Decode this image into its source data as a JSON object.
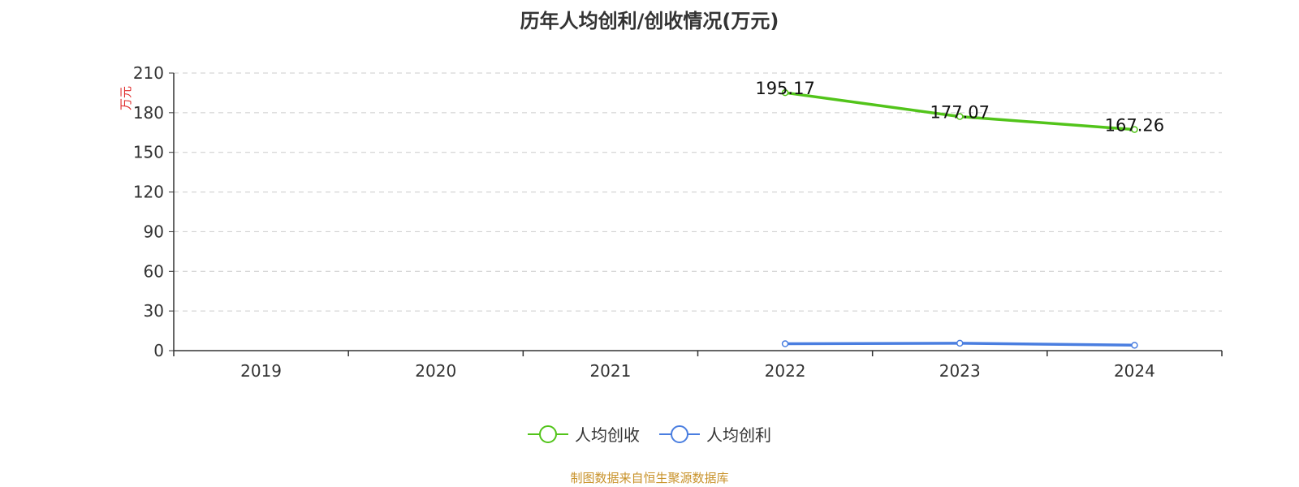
{
  "chart_data": {
    "type": "line",
    "title": "历年人均创利/创收情况(万元)",
    "ylabel": "万元",
    "categories": [
      "2019",
      "2020",
      "2021",
      "2022",
      "2023",
      "2024"
    ],
    "ylim": [
      0,
      210
    ],
    "yticks": [
      0,
      30,
      60,
      90,
      120,
      150,
      180,
      210
    ],
    "grid": true,
    "legend_position": "bottom",
    "series": [
      {
        "name": "人均创收",
        "color": "#52c41a",
        "values": [
          null,
          null,
          null,
          195.17,
          177.07,
          167.26
        ],
        "labels": [
          "",
          "",
          "",
          "195.17",
          "177.07",
          "167.26"
        ]
      },
      {
        "name": "人均创利",
        "color": "#4a7ee0",
        "values": [
          null,
          null,
          null,
          5.2,
          5.6,
          4.1
        ],
        "labels": [
          "",
          "",
          "",
          "",
          "",
          ""
        ]
      }
    ]
  },
  "source_text": "制图数据来自恒生聚源数据库",
  "colors": {
    "ylabel": "#e03030",
    "source": "#c8922a",
    "axis": "#333333",
    "grid": "#cccccc"
  }
}
